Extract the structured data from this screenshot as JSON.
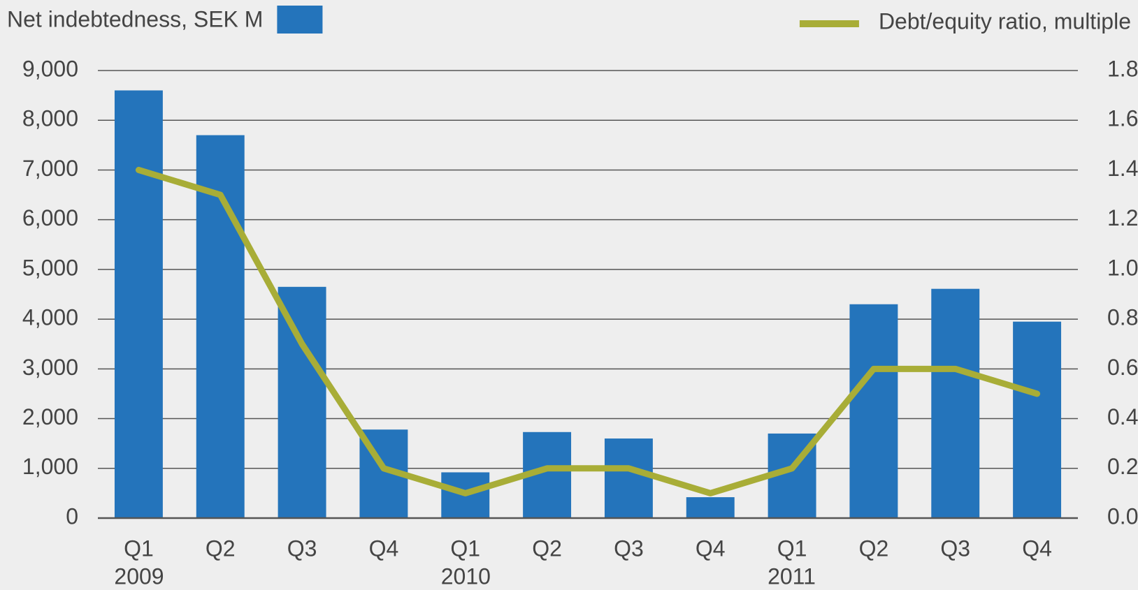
{
  "chart_data": {
    "type": "bar_line",
    "categories": [
      "Q1",
      "Q2",
      "Q3",
      "Q4",
      "Q1",
      "Q2",
      "Q3",
      "Q4",
      "Q1",
      "Q2",
      "Q3",
      "Q4"
    ],
    "years": [
      "2009",
      null,
      null,
      null,
      "2010",
      null,
      null,
      null,
      "2011",
      null,
      null,
      null
    ],
    "series": [
      {
        "name": "Net indebtedness, SEK M",
        "type": "bar",
        "color": "#2474bb",
        "values": [
          8600,
          7700,
          4650,
          1780,
          920,
          1730,
          1600,
          420,
          1700,
          4300,
          4610,
          3950
        ]
      },
      {
        "name": "Debt/equity ratio, multiple",
        "type": "line",
        "axis": "y2",
        "color": "#a8ad37",
        "values": [
          1.4,
          1.3,
          0.7,
          0.2,
          0.1,
          0.2,
          0.2,
          0.1,
          0.2,
          0.6,
          0.6,
          0.5
        ]
      }
    ],
    "ylim": [
      0,
      9000
    ],
    "yticks": [
      0,
      {
        "value": 1000,
        "label": "1,000"
      },
      {
        "value": 2000,
        "label": "2,000"
      },
      {
        "value": 3000,
        "label": "3,000"
      },
      {
        "value": 4000,
        "label": "4,000"
      },
      {
        "value": 5000,
        "label": "5,000"
      },
      {
        "value": 6000,
        "label": "6,000"
      },
      {
        "value": 7000,
        "label": "7,000"
      },
      {
        "value": 8000,
        "label": "8,000"
      },
      {
        "value": 9000,
        "label": "9,000"
      }
    ],
    "y2lim": [
      0,
      1.8
    ],
    "y2ticks": [
      {
        "value": 0,
        "label": "0.0"
      },
      {
        "value": 0.2,
        "label": "0.2"
      },
      {
        "value": 0.4,
        "label": "0.4"
      },
      {
        "value": 0.6,
        "label": "0.6"
      },
      {
        "value": 0.8,
        "label": "0.8"
      },
      {
        "value": 1.0,
        "label": "1.0"
      },
      {
        "value": 1.2,
        "label": "1.2"
      },
      {
        "value": 1.4,
        "label": "1.4"
      },
      {
        "value": 1.6,
        "label": "1.6"
      },
      {
        "value": 1.8,
        "label": "1.8"
      }
    ],
    "grid": true
  }
}
